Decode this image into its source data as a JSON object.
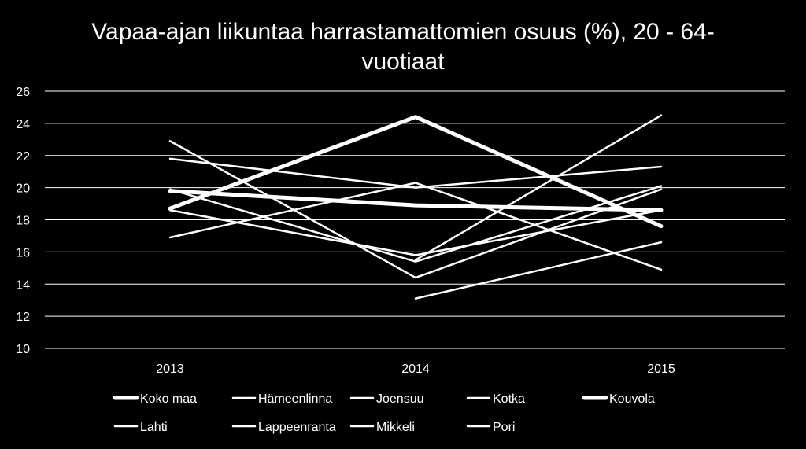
{
  "chart_data": {
    "type": "line",
    "title_line1": "Vapaa-ajan liikuntaa harrastamattomien osuus (%), 20 - 64-",
    "title_line2": "vuotiaat",
    "x": [
      "2013",
      "2014",
      "2015"
    ],
    "ylim": [
      10,
      26
    ],
    "yticks": [
      "10",
      "12",
      "14",
      "16",
      "18",
      "20",
      "22",
      "24",
      "26"
    ],
    "grid": true,
    "legend_position": "bottom",
    "line_color": "#ffffff",
    "series": [
      {
        "name": "Koko maa",
        "values": [
          19.8,
          18.9,
          18.6
        ],
        "bold": true
      },
      {
        "name": "Hämeenlinna",
        "values": [
          21.8,
          20.0,
          21.3
        ],
        "bold": false
      },
      {
        "name": "Joensuu",
        "values": [
          19.9,
          15.4,
          20.1
        ],
        "bold": false
      },
      {
        "name": "Kotka",
        "values": [
          16.9,
          20.3,
          14.9
        ],
        "bold": false
      },
      {
        "name": "Kouvola",
        "values": [
          18.7,
          24.4,
          17.6
        ],
        "bold": true
      },
      {
        "name": "Lahti",
        "values": [
          22.9,
          14.4,
          19.9
        ],
        "bold": false
      },
      {
        "name": "Lappeenranta",
        "values": [
          null,
          13.1,
          16.6
        ],
        "bold": false
      },
      {
        "name": "Mikkeli",
        "values": [
          18.6,
          15.8,
          18.6
        ],
        "bold": false
      },
      {
        "name": "Pori",
        "values": [
          null,
          15.5,
          24.5
        ],
        "bold": false
      }
    ]
  }
}
